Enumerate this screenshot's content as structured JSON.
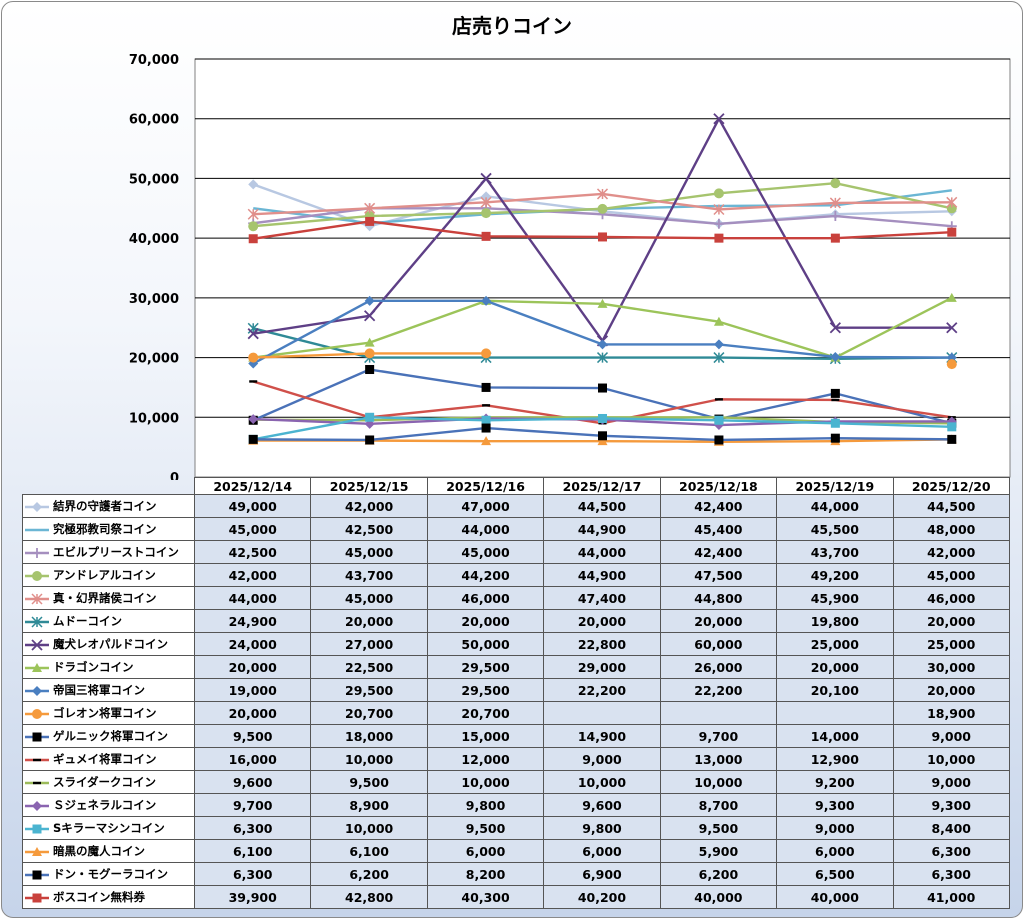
{
  "chart_data": {
    "type": "line",
    "title": "店売りコイン",
    "categories": [
      "2025/12/14",
      "2025/12/15",
      "2025/12/16",
      "2025/12/17",
      "2025/12/18",
      "2025/12/19",
      "2025/12/20"
    ],
    "ylim": [
      0,
      70000
    ],
    "y_ticks": [
      "0",
      "10,000",
      "20,000",
      "30,000",
      "40,000",
      "50,000",
      "60,000",
      "70,000"
    ],
    "grid": true,
    "legend": "data-table",
    "series": [
      {
        "name": "結界の守護者コイン",
        "color": "#b8c8e2",
        "marker": "diamond",
        "values": [
          49000,
          42000,
          47000,
          44500,
          42400,
          44000,
          44500
        ],
        "labels": [
          "49,000",
          "42,000",
          "47,000",
          "44,500",
          "42,400",
          "44,000",
          "44,500"
        ]
      },
      {
        "name": "究極邪教司祭コイン",
        "color": "#6bb6d4",
        "marker": "none",
        "values": [
          45000,
          42500,
          44000,
          44900,
          45400,
          45500,
          48000
        ],
        "labels": [
          "45,000",
          "42,500",
          "44,000",
          "44,900",
          "45,400",
          "45,500",
          "48,000"
        ]
      },
      {
        "name": "エビルプリーストコイン",
        "color": "#a58fbf",
        "marker": "plus",
        "values": [
          42500,
          45000,
          45000,
          44000,
          42400,
          43700,
          42000
        ],
        "labels": [
          "42,500",
          "45,000",
          "45,000",
          "44,000",
          "42,400",
          "43,700",
          "42,000"
        ]
      },
      {
        "name": "アンドレアルコイン",
        "color": "#a6c46e",
        "marker": "circle",
        "values": [
          42000,
          43700,
          44200,
          44900,
          47500,
          49200,
          45000
        ],
        "labels": [
          "42,000",
          "43,700",
          "44,200",
          "44,900",
          "47,500",
          "49,200",
          "45,000"
        ]
      },
      {
        "name": "真・幻界諸侯コイン",
        "color": "#e08f8b",
        "marker": "star",
        "values": [
          44000,
          45000,
          46000,
          47400,
          44800,
          45900,
          46000
        ],
        "labels": [
          "44,000",
          "45,000",
          "46,000",
          "47,400",
          "44,800",
          "45,900",
          "46,000"
        ]
      },
      {
        "name": "ムドーコイン",
        "color": "#2f8a96",
        "marker": "star",
        "values": [
          24900,
          20000,
          20000,
          20000,
          20000,
          19800,
          20000
        ],
        "labels": [
          "24,900",
          "20,000",
          "20,000",
          "20,000",
          "20,000",
          "19,800",
          "20,000"
        ]
      },
      {
        "name": "魔犬レオパルドコイン",
        "color": "#5e3f86",
        "marker": "x",
        "values": [
          24000,
          27000,
          50000,
          22800,
          60000,
          25000,
          25000
        ],
        "labels": [
          "24,000",
          "27,000",
          "50,000",
          "22,800",
          "60,000",
          "25,000",
          "25,000"
        ]
      },
      {
        "name": "ドラゴンコイン",
        "color": "#9cc45a",
        "marker": "triangle",
        "values": [
          20000,
          22500,
          29500,
          29000,
          26000,
          20000,
          30000
        ],
        "labels": [
          "20,000",
          "22,500",
          "29,500",
          "29,000",
          "26,000",
          "20,000",
          "30,000"
        ]
      },
      {
        "name": "帝国三将軍コイン",
        "color": "#4a7fc0",
        "marker": "diamond",
        "values": [
          19000,
          29500,
          29500,
          22200,
          22200,
          20100,
          20000
        ],
        "labels": [
          "19,000",
          "29,500",
          "29,500",
          "22,200",
          "22,200",
          "20,100",
          "20,000"
        ]
      },
      {
        "name": "ゴレオン将軍コイン",
        "color": "#f59a3c",
        "marker": "circle",
        "values": [
          20000,
          20700,
          20700,
          null,
          null,
          null,
          18900
        ],
        "labels": [
          "20,000",
          "20,700",
          "20,700",
          "",
          "",
          "",
          "18,900"
        ]
      },
      {
        "name": "ゲルニック将軍コイン",
        "color": "#4a72b8",
        "marker": "square-black",
        "values": [
          9500,
          18000,
          15000,
          14900,
          9700,
          14000,
          9000
        ],
        "labels": [
          "9,500",
          "18,000",
          "15,000",
          "14,900",
          "9,700",
          "14,000",
          "9,000"
        ]
      },
      {
        "name": "ギュメイ将軍コイン",
        "color": "#d0504a",
        "marker": "dash-black",
        "values": [
          16000,
          10000,
          12000,
          9000,
          13000,
          12900,
          10000
        ],
        "labels": [
          "16,000",
          "10,000",
          "12,000",
          "9,000",
          "13,000",
          "12,900",
          "10,000"
        ]
      },
      {
        "name": "スライダークコイン",
        "color": "#9cbb5a",
        "marker": "dash-black",
        "values": [
          9600,
          9500,
          10000,
          10000,
          10000,
          9200,
          9000
        ],
        "labels": [
          "9,600",
          "9,500",
          "10,000",
          "10,000",
          "10,000",
          "9,200",
          "9,000"
        ]
      },
      {
        "name": "Ｓジェネラルコイン",
        "color": "#8a64b0",
        "marker": "diamond",
        "values": [
          9700,
          8900,
          9800,
          9600,
          8700,
          9300,
          9300
        ],
        "labels": [
          "9,700",
          "8,900",
          "9,800",
          "9,600",
          "8,700",
          "9,300",
          "9,300"
        ]
      },
      {
        "name": "Sキラーマシンコイン",
        "color": "#4bb4d0",
        "marker": "square",
        "values": [
          6300,
          10000,
          9500,
          9800,
          9500,
          9000,
          8400
        ],
        "labels": [
          "6,300",
          "10,000",
          "9,500",
          "9,800",
          "9,500",
          "9,000",
          "8,400"
        ]
      },
      {
        "name": "暗黒の魔人コイン",
        "color": "#f59a3c",
        "marker": "triangle",
        "values": [
          6100,
          6100,
          6000,
          6000,
          5900,
          6000,
          6300
        ],
        "labels": [
          "6,100",
          "6,100",
          "6,000",
          "6,000",
          "5,900",
          "6,000",
          "6,300"
        ]
      },
      {
        "name": "ドン・モグーラコイン",
        "color": "#4a72b8",
        "marker": "square-black",
        "values": [
          6300,
          6200,
          8200,
          6900,
          6200,
          6500,
          6300
        ],
        "labels": [
          "6,300",
          "6,200",
          "8,200",
          "6,900",
          "6,200",
          "6,500",
          "6,300"
        ]
      },
      {
        "name": "ボスコイン無料券",
        "color": "#c9413c",
        "marker": "square",
        "values": [
          39900,
          42800,
          40300,
          40200,
          40000,
          40000,
          41000
        ],
        "labels": [
          "39,900",
          "42,800",
          "40,300",
          "40,200",
          "40,000",
          "40,000",
          "41,000"
        ]
      }
    ]
  }
}
